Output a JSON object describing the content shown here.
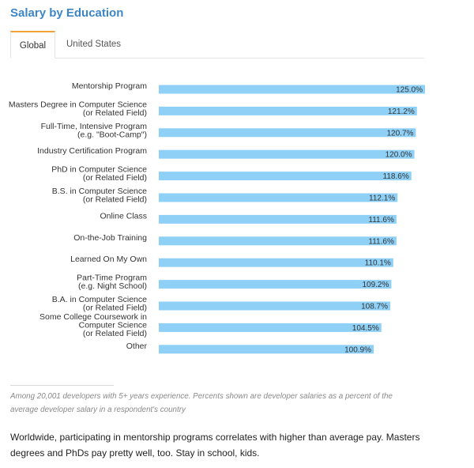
{
  "title": "Salary by Education",
  "tabs": [
    {
      "label": "Global",
      "active": true
    },
    {
      "label": "United States",
      "active": false
    }
  ],
  "colors": {
    "bar": "#8fd0f7",
    "accent": "#3d86c6",
    "tab_highlight": "#f2a13c"
  },
  "chart_data": {
    "type": "bar",
    "orientation": "horizontal",
    "categories": [
      [
        "Mentorship Program"
      ],
      [
        "Masters Degree in Computer Science",
        "(or Related Field)"
      ],
      [
        "Full-Time, Intensive Program",
        "(e.g. \"Boot-Camp\")"
      ],
      [
        "Industry Certification Program"
      ],
      [
        "PhD in Computer Science",
        "(or Related Field)"
      ],
      [
        "B.S. in Computer Science",
        "(or Related Field)"
      ],
      [
        "Online Class"
      ],
      [
        "On-the-Job Training"
      ],
      [
        "Learned On My Own"
      ],
      [
        "Part-Time Program",
        "(e.g. Night School)"
      ],
      [
        "B.A. in Computer Science",
        "(or Related Field)"
      ],
      [
        "Some College Coursework in",
        "Computer Science",
        "(or Related Field)"
      ],
      [
        "Other"
      ]
    ],
    "values": [
      125.0,
      121.2,
      120.7,
      120.0,
      118.6,
      112.1,
      111.6,
      111.6,
      110.1,
      109.2,
      108.7,
      104.5,
      100.9
    ],
    "value_labels": [
      "125.0%",
      "121.2%",
      "120.7%",
      "120.0%",
      "118.6%",
      "112.1%",
      "111.6%",
      "111.6%",
      "110.1%",
      "109.2%",
      "108.7%",
      "104.5%",
      "100.9%"
    ],
    "xlim": [
      0,
      125
    ],
    "unit": "%"
  },
  "footnote": "Among 20,001 developers with 5+ years experience. Percents shown are developer salaries as a percent of the average developer salary in a respondent's country",
  "summary": "Worldwide, participating in mentorship programs correlates with higher than average pay. Masters degrees and PhDs pay pretty well, too. Stay in school, kids."
}
